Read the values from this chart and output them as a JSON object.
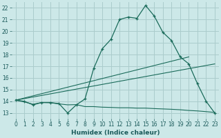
{
  "xlabel": "Humidex (Indice chaleur)",
  "bg_color": "#cce8e8",
  "grid_color": "#aacccc",
  "line_color": "#1a6b5a",
  "xlim": [
    -0.5,
    23.5
  ],
  "ylim": [
    12.5,
    22.5
  ],
  "xticks": [
    0,
    1,
    2,
    3,
    4,
    5,
    6,
    7,
    8,
    9,
    10,
    11,
    12,
    13,
    14,
    15,
    16,
    17,
    18,
    19,
    20,
    21,
    22,
    23
  ],
  "yticks": [
    13,
    14,
    15,
    16,
    17,
    18,
    19,
    20,
    21,
    22
  ],
  "series1_x": [
    0,
    1,
    2,
    3,
    4,
    5,
    6,
    7,
    8,
    9,
    10,
    11,
    12,
    13,
    14,
    15,
    16,
    17,
    18,
    19,
    20,
    21,
    22,
    23
  ],
  "series1_y": [
    14.1,
    14.0,
    13.7,
    13.9,
    13.9,
    13.8,
    13.0,
    13.7,
    14.2,
    16.8,
    18.5,
    19.3,
    21.0,
    21.2,
    21.1,
    22.2,
    21.3,
    19.9,
    19.2,
    17.8,
    17.2,
    15.5,
    14.0,
    13.0
  ],
  "series2_x": [
    0,
    20
  ],
  "series2_y": [
    14.1,
    17.8
  ],
  "series3_x": [
    0,
    23
  ],
  "series3_y": [
    14.1,
    17.2
  ],
  "series4_x": [
    0,
    1,
    2,
    3,
    4,
    5,
    6,
    7,
    8,
    9,
    10,
    11,
    12,
    13,
    14,
    15,
    16,
    17,
    18,
    19,
    20,
    21,
    22,
    23
  ],
  "series4_y": [
    14.1,
    13.95,
    13.75,
    13.9,
    13.88,
    13.78,
    13.7,
    13.72,
    13.55,
    13.55,
    13.5,
    13.48,
    13.45,
    13.45,
    13.42,
    13.42,
    13.38,
    13.35,
    13.32,
    13.28,
    13.22,
    13.18,
    13.12,
    13.05
  ]
}
